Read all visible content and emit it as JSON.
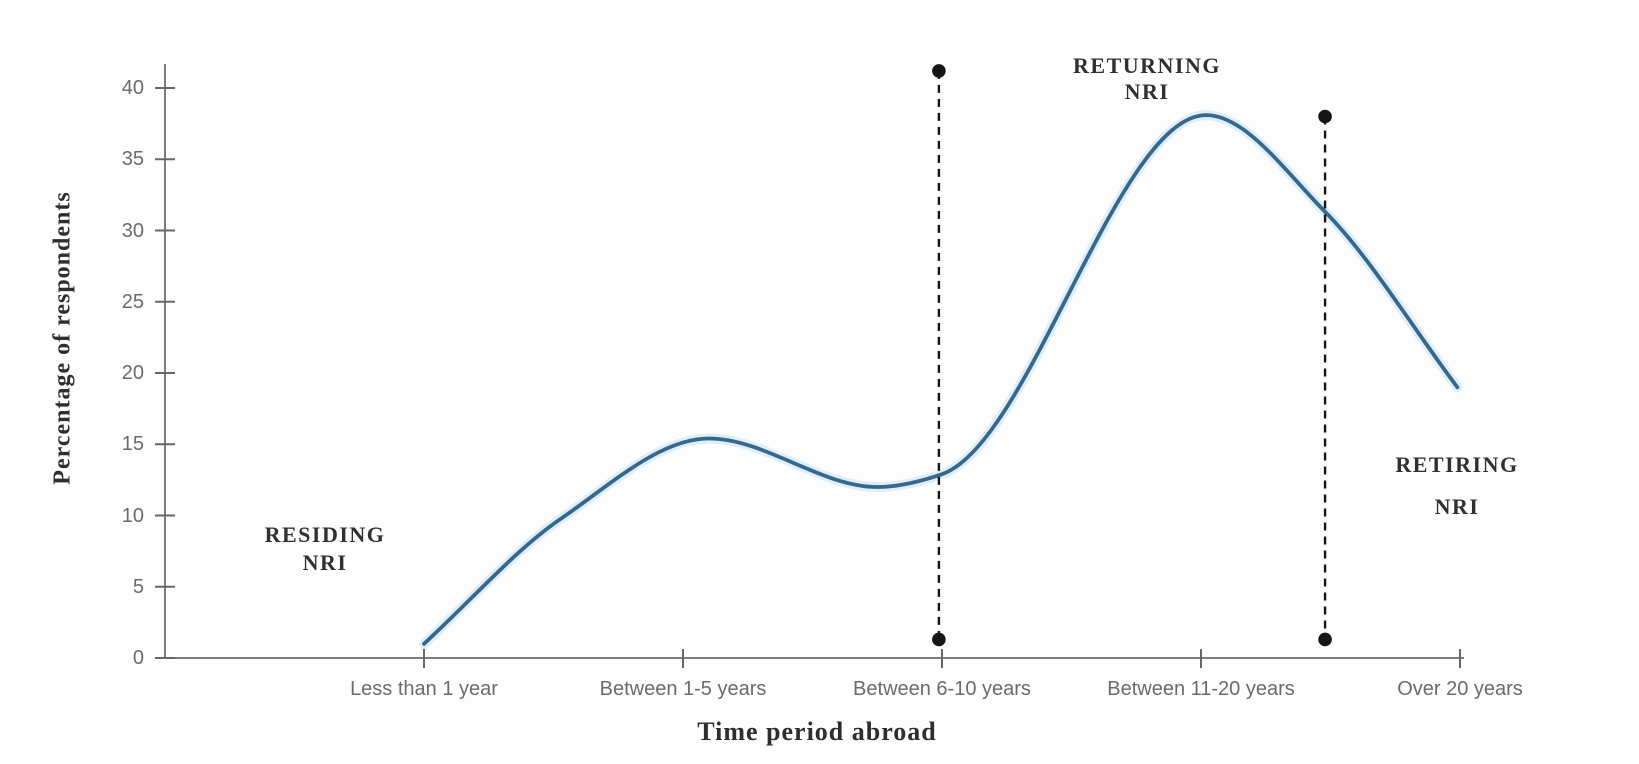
{
  "figure": {
    "background": "#fdfdfd",
    "description": "Smooth line chart of percentage of respondents vs time period abroad, divided by two dashed vertical boundaries into RESIDING NRI, RETURNING NRI and RETIRING NRI regions"
  },
  "axes": {
    "x_title": "Time period abroad",
    "y_title": "Percentage of respondents"
  },
  "annotations": {
    "residing": {
      "line1": "RESIDING",
      "line2": "NRI"
    },
    "returning": {
      "line1": "RETURNING",
      "line2": "NRI"
    },
    "retiring": {
      "line1": "RETIRING",
      "line2": "NRI"
    }
  },
  "colors": {
    "curve": "#35688e",
    "curve_halo": "#dcebf6",
    "axis": "#7c7c7c",
    "tick_mark": "#666666",
    "tick_label": "#6b6b6b",
    "annotation_text": "#303030",
    "divider": "#161616",
    "background": "#fdfdfd"
  },
  "chart_data": {
    "type": "line",
    "title": "",
    "xlabel": "Time period abroad",
    "ylabel": "Percentage of respondents",
    "categories": [
      "Less than 1 year",
      "Between 1-5 years",
      "Between 6-10 years",
      "Between 11-20 years",
      "Over 20 years"
    ],
    "y_tick_values": [
      0,
      5,
      10,
      15,
      20,
      25,
      30,
      35,
      40
    ],
    "ylim": [
      0,
      42
    ],
    "grid": false,
    "legend": "none",
    "series": [
      {
        "name": "Percentage of respondents",
        "note": "x is fractional category index (0 = Less than 1 year ... 4 = Over 20 years), v is percent",
        "points": [
          {
            "x": 0.0,
            "v": 1.0
          },
          {
            "x": 0.53,
            "v": 9.8
          },
          {
            "x": 1.1,
            "v": 15.4
          },
          {
            "x": 1.75,
            "v": 12.0
          },
          {
            "x": 2.0,
            "v": 12.9
          },
          {
            "x": 3.02,
            "v": 38.1
          },
          {
            "x": 3.48,
            "v": 31.3
          },
          {
            "x": 3.99,
            "v": 19.0
          }
        ]
      }
    ],
    "key_readings": {
      "Less than 1 year": 1,
      "local peak near Between 1-5 years": 15.4,
      "local dip between 1-5 and 6-10": 12,
      "Between 6-10 years": 13,
      "peak just after Between 11-20 years": 38,
      "at retiring divider": 31,
      "Over 20 years": 19
    },
    "dividers": [
      {
        "label": "residing/returning boundary",
        "x": 1.988,
        "top_dot_percent": 41.2,
        "bottom_dot_percent": 1.3
      },
      {
        "label": "returning/retiring boundary",
        "x": 3.479,
        "top_dot_percent": 38.0,
        "bottom_dot_percent": 1.3
      }
    ],
    "regions": [
      "RESIDING NRI",
      "RETURNING NRI",
      "RETIRING NRI"
    ]
  }
}
